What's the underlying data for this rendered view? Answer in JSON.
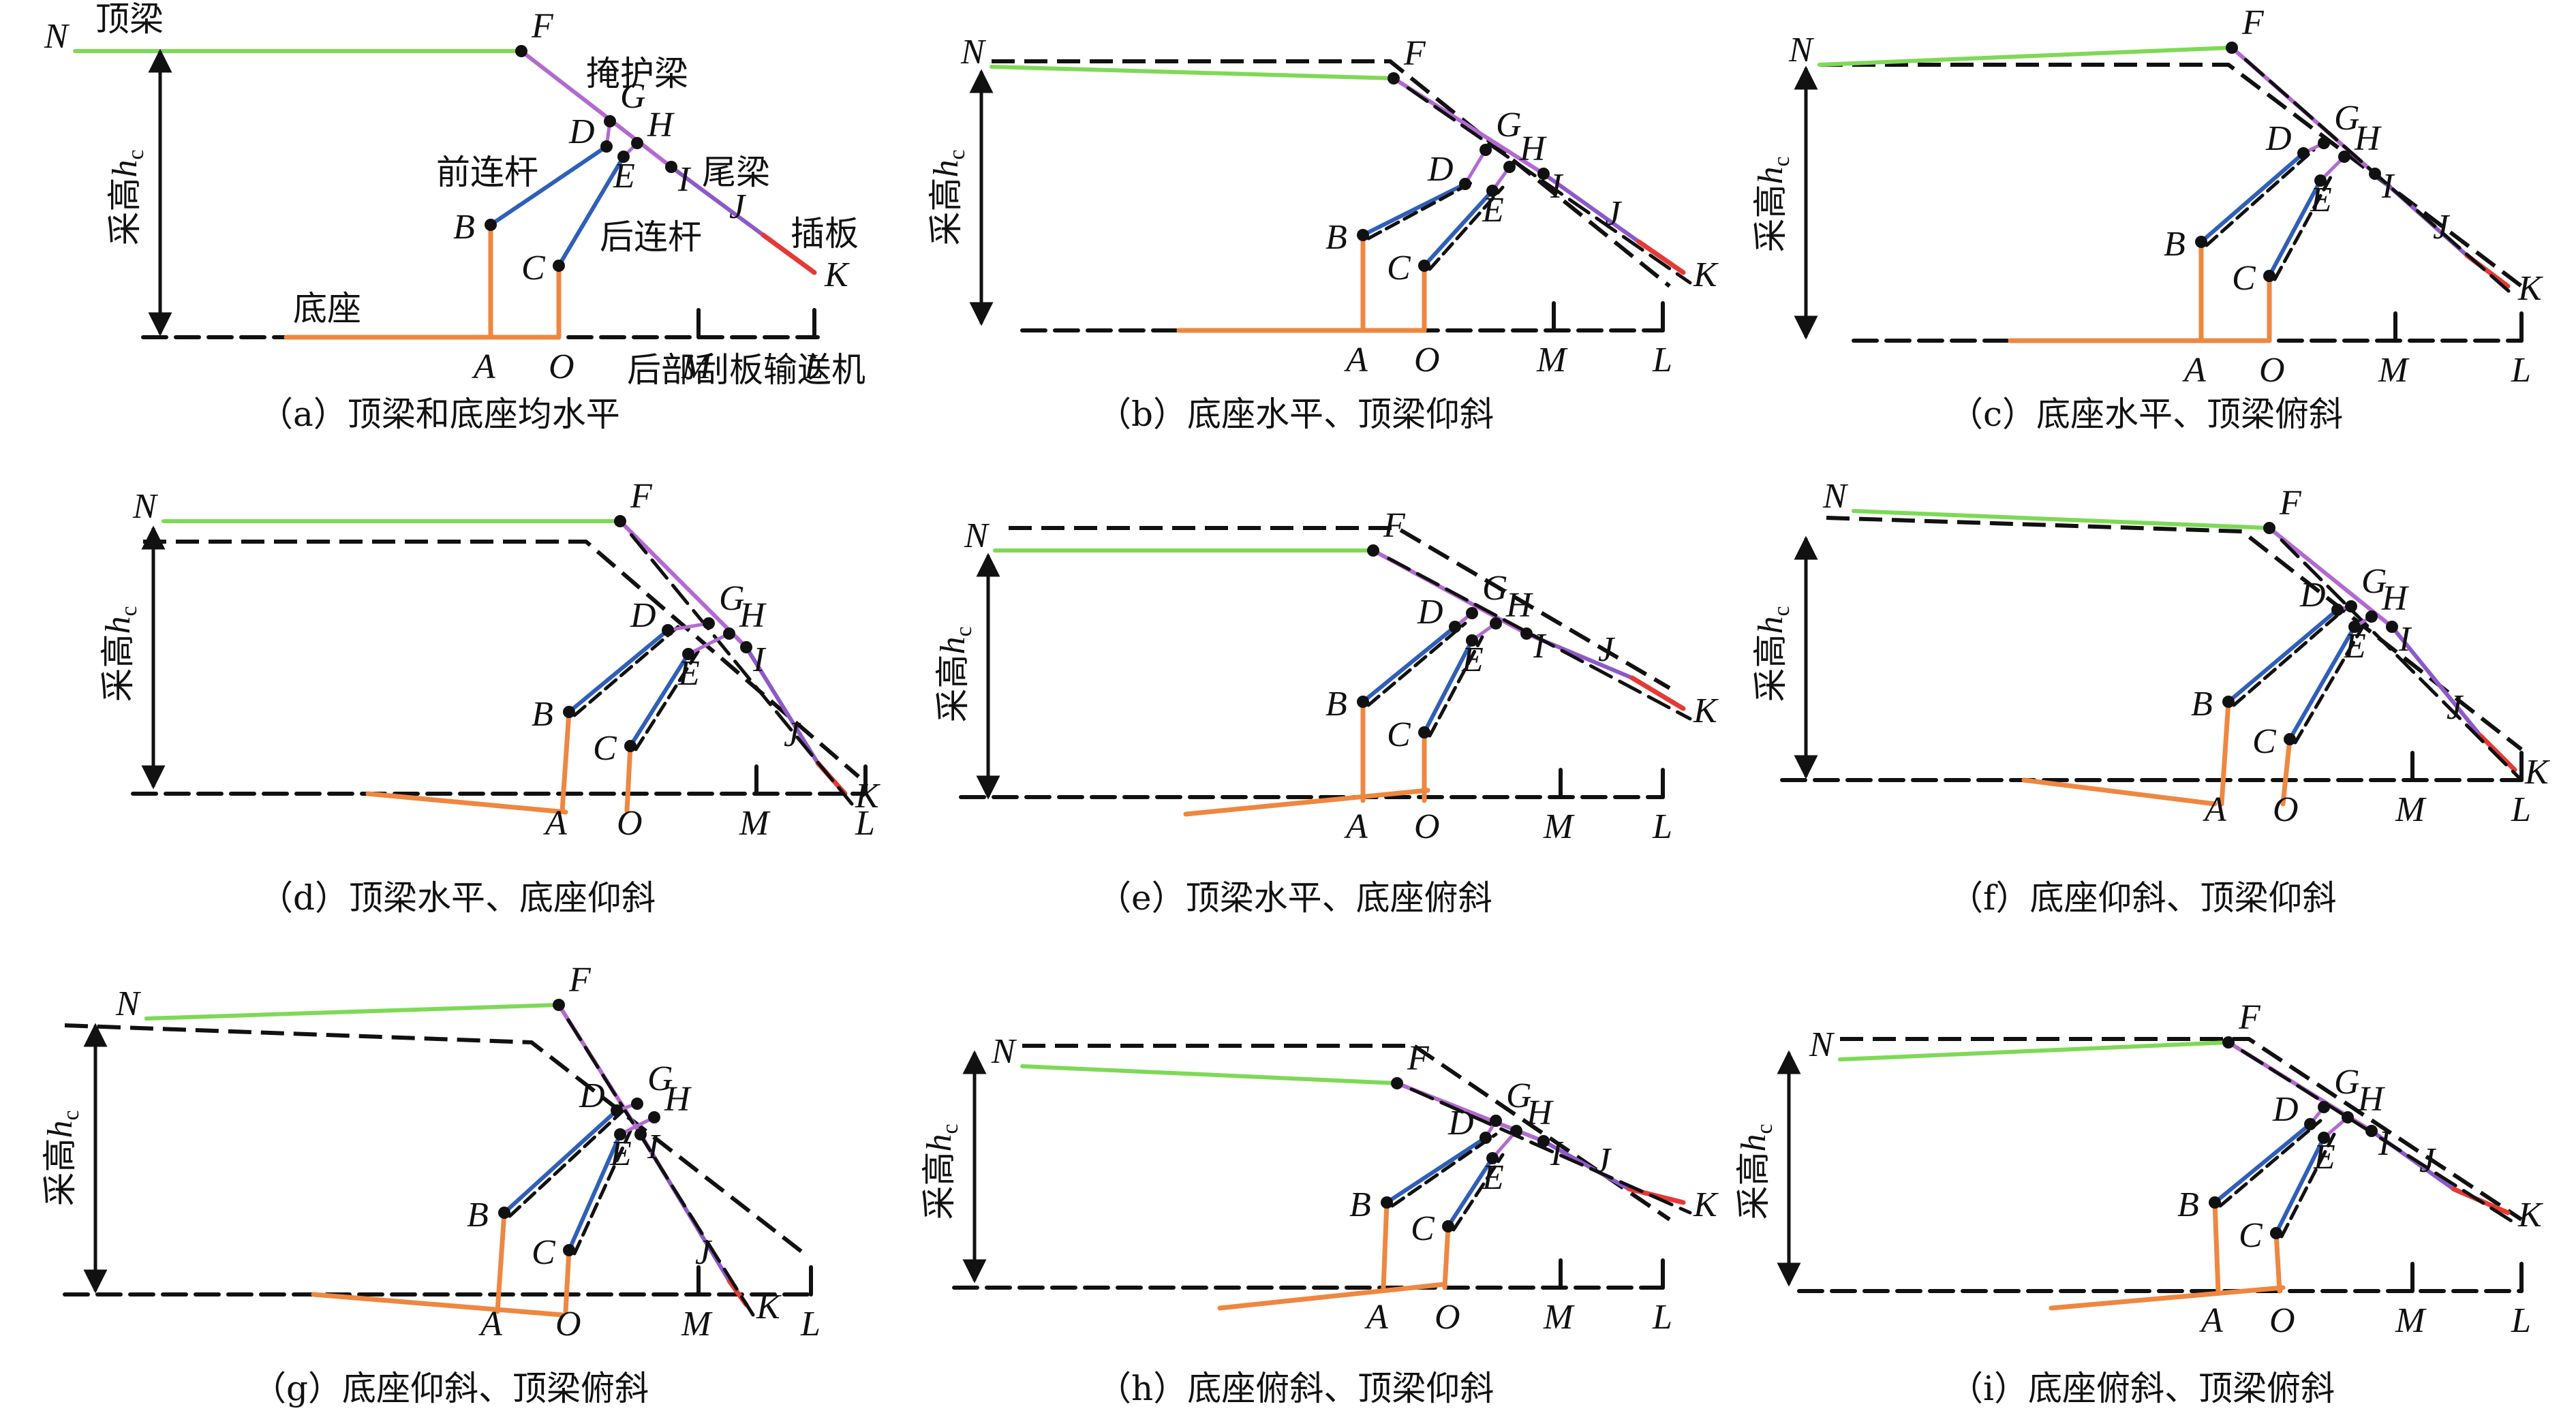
{
  "colors": {
    "roof": "#7ed957",
    "shield": "#b36ad0",
    "tail": "#8c5ac8",
    "flipper": "#e53935",
    "link": "#2f5fb8",
    "base": "#ee8740",
    "dash": "#111111"
  },
  "label_text": {
    "height": "采高",
    "height_var": "h",
    "height_sub": "c"
  },
  "panels": [
    {
      "id": "a",
      "caption": "（a）顶梁和底座均水平",
      "labels": {
        "N": "N",
        "F": "F",
        "G": "G",
        "H": "H",
        "I": "I",
        "D": "D",
        "E": "E",
        "B": "B",
        "C": "C",
        "J": "J",
        "K": "K",
        "A": "A",
        "O": "O",
        "M": "M",
        "L": "L"
      },
      "annotations": {
        "roof": "顶梁",
        "shield": "掩护梁",
        "front_link": "前连杆",
        "tail": "尾梁",
        "back_link": "后连杆",
        "flipper": "插板",
        "base": "底座",
        "conveyor": "后部刮板输送机"
      }
    },
    {
      "id": "b",
      "caption": "（b）底座水平、顶梁仰斜",
      "labels": {
        "N": "N",
        "F": "F",
        "G": "G",
        "H": "H",
        "I": "I",
        "D": "D",
        "E": "E",
        "B": "B",
        "C": "C",
        "J": "J",
        "K": "K",
        "A": "A",
        "O": "O",
        "M": "M",
        "L": "L"
      }
    },
    {
      "id": "c",
      "caption": "（c）底座水平、顶梁俯斜",
      "labels": {
        "N": "N",
        "F": "F",
        "G": "G",
        "H": "H",
        "I": "I",
        "D": "D",
        "E": "E",
        "B": "B",
        "C": "C",
        "J": "J",
        "K": "K",
        "A": "A",
        "O": "O",
        "M": "M",
        "L": "L"
      }
    },
    {
      "id": "d",
      "caption": "（d）顶梁水平、底座仰斜",
      "labels": {
        "N": "N",
        "F": "F",
        "G": "G",
        "H": "H",
        "I": "I",
        "D": "D",
        "E": "E",
        "B": "B",
        "C": "C",
        "J": "J",
        "K": "K",
        "A": "A",
        "O": "O",
        "M": "M",
        "L": "L"
      }
    },
    {
      "id": "e",
      "caption": "（e）顶梁水平、底座俯斜",
      "labels": {
        "N": "N",
        "F": "F",
        "G": "G",
        "H": "H",
        "I": "I",
        "D": "D",
        "E": "E",
        "B": "B",
        "C": "C",
        "J": "J",
        "K": "K",
        "A": "A",
        "O": "O",
        "M": "M",
        "L": "L"
      }
    },
    {
      "id": "f",
      "caption": "（f）底座仰斜、顶梁仰斜",
      "labels": {
        "N": "N",
        "F": "F",
        "G": "G",
        "H": "H",
        "I": "I",
        "D": "D",
        "E": "E",
        "B": "B",
        "C": "C",
        "J": "J",
        "K": "K",
        "A": "A",
        "O": "O",
        "M": "M",
        "L": "L"
      }
    },
    {
      "id": "g",
      "caption": "（g）底座仰斜、顶梁俯斜",
      "labels": {
        "N": "N",
        "F": "F",
        "G": "G",
        "H": "H",
        "I": "I",
        "D": "D",
        "E": "E",
        "B": "B",
        "C": "C",
        "J": "J",
        "K": "K",
        "A": "A",
        "O": "O",
        "M": "M",
        "L": "L"
      }
    },
    {
      "id": "h",
      "caption": "（h）底座俯斜、顶梁仰斜",
      "labels": {
        "N": "N",
        "F": "F",
        "G": "G",
        "H": "H",
        "I": "I",
        "D": "D",
        "E": "E",
        "B": "B",
        "C": "C",
        "J": "J",
        "K": "K",
        "A": "A",
        "O": "O",
        "M": "M",
        "L": "L"
      }
    },
    {
      "id": "i",
      "caption": "（i）底座俯斜、顶梁俯斜",
      "labels": {
        "N": "N",
        "F": "F",
        "G": "G",
        "H": "H",
        "I": "I",
        "D": "D",
        "E": "E",
        "B": "B",
        "C": "C",
        "J": "J",
        "K": "K",
        "A": "A",
        "O": "O",
        "M": "M",
        "L": "L"
      }
    }
  ]
}
